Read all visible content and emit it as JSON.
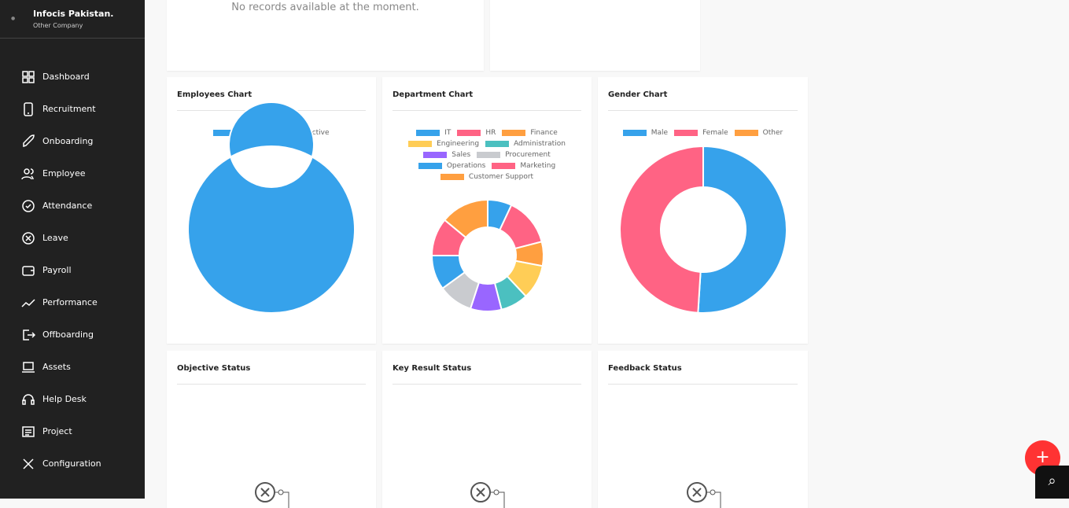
{
  "company": {
    "name": "Infocis Pakistan.",
    "type": "Other Company"
  },
  "sidebar": {
    "items": [
      {
        "label": "Dashboard",
        "icon": "grid-icon"
      },
      {
        "label": "Recruitment",
        "icon": "phone-icon"
      },
      {
        "label": "Onboarding",
        "icon": "rocket-icon"
      },
      {
        "label": "Employee",
        "icon": "users-icon"
      },
      {
        "label": "Attendance",
        "icon": "check-circle-icon"
      },
      {
        "label": "Leave",
        "icon": "x-circle-icon"
      },
      {
        "label": "Payroll",
        "icon": "wallet-icon"
      },
      {
        "label": "Performance",
        "icon": "trend-icon"
      },
      {
        "label": "Offboarding",
        "icon": "exit-icon"
      },
      {
        "label": "Assets",
        "icon": "laptop-icon"
      },
      {
        "label": "Help Desk",
        "icon": "headset-icon"
      },
      {
        "label": "Project",
        "icon": "project-icon"
      },
      {
        "label": "Configuration",
        "icon": "tools-icon"
      }
    ]
  },
  "top": {
    "no_records": "No records available at the moment."
  },
  "cards": {
    "employees": "Employees Chart",
    "department": "Department Chart",
    "gender": "Gender Chart",
    "objective": "Objective Status",
    "key_result": "Key Result Status",
    "feedback": "Feedback Status"
  },
  "chart_data": [
    {
      "type": "pie",
      "title": "Employees Chart",
      "categories": [
        "Active",
        "In-Active"
      ],
      "values": [
        100,
        0
      ],
      "colors": [
        "#36a2eb",
        "#ff6384"
      ],
      "legend": "top"
    },
    {
      "type": "pie",
      "title": "Department Chart",
      "categories": [
        "IT",
        "HR",
        "Finance",
        "Engineering",
        "Administration",
        "Sales",
        "Procurement",
        "Operations",
        "Marketing",
        "Customer Support"
      ],
      "values": [
        7,
        14,
        7,
        10,
        8,
        9,
        10,
        10,
        11,
        14
      ],
      "colors": [
        "#36a2eb",
        "#ff6384",
        "#ff9f40",
        "#ffcd56",
        "#4bc0c0",
        "#9966ff",
        "#c9cbcf",
        "#36a2eb",
        "#ff6384",
        "#ff9f40"
      ],
      "legend": "top"
    },
    {
      "type": "pie",
      "title": "Gender Chart",
      "categories": [
        "Male",
        "Female",
        "Other"
      ],
      "values": [
        51,
        49,
        0
      ],
      "colors": [
        "#36a2eb",
        "#ff6384",
        "#ff9f40"
      ],
      "legend": "top"
    }
  ],
  "fab": {
    "label": "+"
  }
}
